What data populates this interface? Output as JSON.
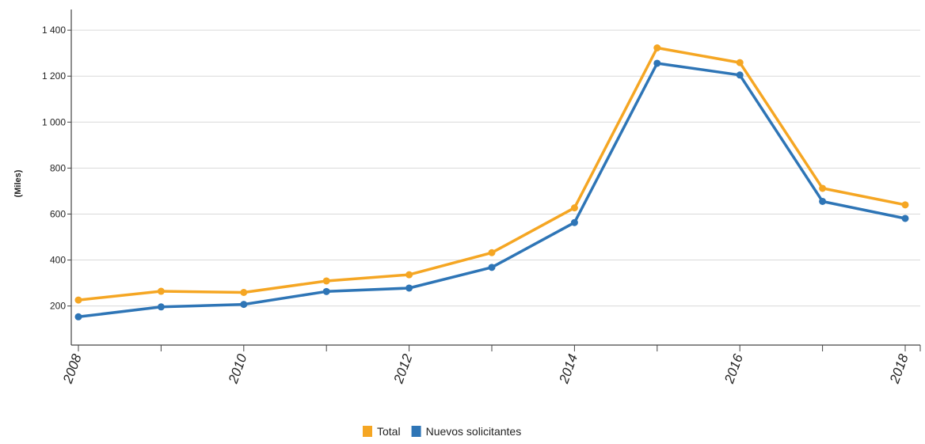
{
  "chart_data": {
    "type": "line",
    "title": "",
    "xlabel": "",
    "ylabel": "(Miles)",
    "x": [
      2008,
      2009,
      2010,
      2011,
      2012,
      2013,
      2014,
      2015,
      2016,
      2017,
      2018
    ],
    "x_tick_labels": [
      "2008",
      "2010",
      "2012",
      "2014",
      "2016",
      "2018"
    ],
    "y_tick_labels": [
      "200",
      "400",
      "600",
      "800",
      "1 000",
      "1 200",
      "1 400"
    ],
    "y_ticks": [
      200,
      400,
      600,
      800,
      1000,
      1200,
      1400
    ],
    "xlim": [
      2008,
      2018
    ],
    "ylim": [
      30,
      1490
    ],
    "grid": true,
    "legend_position": "bottom-center",
    "series": [
      {
        "name": "Total",
        "color": "#f5a623",
        "values": [
          226,
          264,
          259,
          309,
          336,
          432,
          627,
          1323,
          1259,
          712,
          640
        ]
      },
      {
        "name": "Nuevos solicitantes",
        "color": "#2e75b6",
        "values": [
          153,
          196,
          207,
          263,
          278,
          368,
          563,
          1256,
          1205,
          655,
          581
        ]
      }
    ]
  }
}
